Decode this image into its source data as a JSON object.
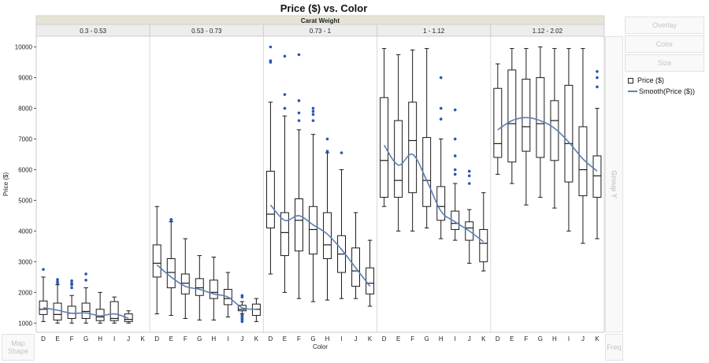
{
  "chart_data": {
    "type": "boxplot",
    "title": "Price ($) vs. Color",
    "group_header": "Carat Weight",
    "xlabel": "Color",
    "ylabel": "Price ($)",
    "ylim": [
      700,
      10350
    ],
    "yticks": [
      1000,
      2000,
      3000,
      4000,
      5000,
      6000,
      7000,
      8000,
      9000,
      10000
    ],
    "categories": [
      "D",
      "E",
      "F",
      "G",
      "H",
      "I",
      "J",
      "K"
    ],
    "legend": {
      "box_label": "Price ($)",
      "smooth_label": "Smooth(Price ($))"
    },
    "colors": {
      "smooth": "#5b7fb8",
      "outlier": "#2a56b8",
      "box": "#1a1a1a",
      "header_bg": "#e6e4d6"
    },
    "panels": [
      {
        "label": "0.3 - 0.53",
        "boxes": [
          {
            "cat": "D",
            "min": 1050,
            "q1": 1280,
            "median": 1450,
            "q3": 1720,
            "max": 2500,
            "outliers": [
              2750
            ]
          },
          {
            "cat": "E",
            "min": 1000,
            "q1": 1100,
            "median": 1280,
            "q3": 1650,
            "max": 2250,
            "outliers": [
              2300,
              2350,
              2420
            ]
          },
          {
            "cat": "F",
            "min": 1000,
            "q1": 1150,
            "median": 1320,
            "q3": 1550,
            "max": 1900,
            "outliers": [
              2150,
              2250,
              2300,
              2380
            ]
          },
          {
            "cat": "G",
            "min": 1000,
            "q1": 1150,
            "median": 1380,
            "q3": 1650,
            "max": 2150,
            "outliers": [
              2400,
              2600
            ]
          },
          {
            "cat": "H",
            "min": 1000,
            "q1": 1080,
            "median": 1200,
            "q3": 1450,
            "max": 2000,
            "outliers": []
          },
          {
            "cat": "I",
            "min": 1000,
            "q1": 1080,
            "median": 1150,
            "q3": 1700,
            "max": 1850,
            "outliers": []
          },
          {
            "cat": "J",
            "min": 1000,
            "q1": 1050,
            "median": 1120,
            "q3": 1300,
            "max": 1400,
            "outliers": []
          }
        ],
        "smooth": [
          1500,
          1420,
          1320,
          1330,
          1240,
          1300,
          1160
        ]
      },
      {
        "label": "0.53 - 0.73",
        "boxes": [
          {
            "cat": "D",
            "min": 1300,
            "q1": 2500,
            "median": 2950,
            "q3": 3550,
            "max": 4800,
            "outliers": []
          },
          {
            "cat": "E",
            "min": 1250,
            "q1": 2150,
            "median": 2650,
            "q3": 3100,
            "max": 4300,
            "outliers": [
              4350,
              4380
            ]
          },
          {
            "cat": "F",
            "min": 1150,
            "q1": 1950,
            "median": 2300,
            "q3": 2600,
            "max": 3750,
            "outliers": []
          },
          {
            "cat": "G",
            "min": 1100,
            "q1": 1900,
            "median": 2150,
            "q3": 2450,
            "max": 3200,
            "outliers": []
          },
          {
            "cat": "H",
            "min": 1100,
            "q1": 1800,
            "median": 2000,
            "q3": 2400,
            "max": 3150,
            "outliers": []
          },
          {
            "cat": "I",
            "min": 1200,
            "q1": 1600,
            "median": 1800,
            "q3": 2100,
            "max": 2650,
            "outliers": []
          },
          {
            "cat": "J",
            "min": 1300,
            "q1": 1400,
            "median": 1450,
            "q3": 1580,
            "max": 1700,
            "outliers": [
              1050,
              1100,
              1150,
              1200,
              1250,
              1850,
              1900
            ]
          },
          {
            "cat": "K",
            "min": 1050,
            "q1": 1250,
            "median": 1450,
            "q3": 1620,
            "max": 1800,
            "outliers": []
          }
        ],
        "smooth": [
          2900,
          2500,
          2200,
          2100,
          1950,
          1850,
          1500,
          1450
        ]
      },
      {
        "label": "0.73 - 1",
        "boxes": [
          {
            "cat": "D",
            "min": 2600,
            "q1": 4100,
            "median": 4550,
            "q3": 5950,
            "max": 8200,
            "outliers": [
              9500,
              9550,
              10000
            ]
          },
          {
            "cat": "E",
            "min": 2000,
            "q1": 3200,
            "median": 3950,
            "q3": 4600,
            "max": 7750,
            "outliers": [
              8000,
              8450,
              9700
            ]
          },
          {
            "cat": "F",
            "min": 1800,
            "q1": 3350,
            "median": 4350,
            "q3": 5050,
            "max": 7300,
            "outliers": [
              7600,
              7850,
              8250,
              9750
            ]
          },
          {
            "cat": "G",
            "min": 1700,
            "q1": 3250,
            "median": 4050,
            "q3": 4800,
            "max": 7150,
            "outliers": [
              7600,
              7800,
              7900,
              8000
            ]
          },
          {
            "cat": "H",
            "min": 1750,
            "q1": 3100,
            "median": 3550,
            "q3": 4600,
            "max": 6550,
            "outliers": [
              6600,
              7000
            ]
          },
          {
            "cat": "I",
            "min": 1800,
            "q1": 2650,
            "median": 3250,
            "q3": 3850,
            "max": 6000,
            "outliers": [
              6550
            ]
          },
          {
            "cat": "J",
            "min": 1800,
            "q1": 2200,
            "median": 2700,
            "q3": 3450,
            "max": 4600,
            "outliers": []
          },
          {
            "cat": "K",
            "min": 1550,
            "q1": 1950,
            "median": 2300,
            "q3": 2800,
            "max": 3700,
            "outliers": []
          }
        ],
        "smooth": [
          4850,
          4350,
          4500,
          4200,
          3900,
          3400,
          2800,
          2200
        ]
      },
      {
        "label": "1 - 1.12",
        "boxes": [
          {
            "cat": "D",
            "min": 4800,
            "q1": 5100,
            "median": 6300,
            "q3": 8350,
            "max": 9950,
            "outliers": []
          },
          {
            "cat": "E",
            "min": 4000,
            "q1": 5100,
            "median": 5650,
            "q3": 7600,
            "max": 9750,
            "outliers": []
          },
          {
            "cat": "F",
            "min": 4000,
            "q1": 5250,
            "median": 6950,
            "q3": 8200,
            "max": 9900,
            "outliers": []
          },
          {
            "cat": "G",
            "min": 4100,
            "q1": 4800,
            "median": 5650,
            "q3": 7050,
            "max": 9950,
            "outliers": []
          },
          {
            "cat": "H",
            "min": 3750,
            "q1": 4350,
            "median": 4800,
            "q3": 5450,
            "max": 7000,
            "outliers": [
              7650,
              8000,
              9000
            ]
          },
          {
            "cat": "I",
            "min": 3700,
            "q1": 4050,
            "median": 4250,
            "q3": 4650,
            "max": 5550,
            "outliers": [
              5850,
              6000,
              6450,
              7000,
              7950
            ]
          },
          {
            "cat": "J",
            "min": 2950,
            "q1": 3700,
            "median": 4100,
            "q3": 4300,
            "max": 4700,
            "outliers": [
              5550,
              5800,
              5950
            ]
          },
          {
            "cat": "K",
            "min": 2700,
            "q1": 3000,
            "median": 3600,
            "q3": 4050,
            "max": 5250,
            "outliers": []
          }
        ],
        "smooth": [
          6800,
          6150,
          6500,
          5650,
          4650,
          4300,
          4000,
          3650
        ]
      },
      {
        "label": "1.12 - 2.02",
        "boxes": [
          {
            "cat": "D",
            "min": 5850,
            "q1": 6400,
            "median": 6850,
            "q3": 8650,
            "max": 9450,
            "outliers": []
          },
          {
            "cat": "E",
            "min": 5550,
            "q1": 6250,
            "median": 7500,
            "q3": 9250,
            "max": 9950,
            "outliers": []
          },
          {
            "cat": "F",
            "min": 4850,
            "q1": 6600,
            "median": 7400,
            "q3": 8950,
            "max": 9950,
            "outliers": []
          },
          {
            "cat": "G",
            "min": 5100,
            "q1": 6400,
            "median": 7500,
            "q3": 9000,
            "max": 10000,
            "outliers": []
          },
          {
            "cat": "H",
            "min": 4750,
            "q1": 6300,
            "median": 7600,
            "q3": 8250,
            "max": 9950,
            "outliers": []
          },
          {
            "cat": "I",
            "min": 4000,
            "q1": 5600,
            "median": 6850,
            "q3": 8750,
            "max": 9950,
            "outliers": []
          },
          {
            "cat": "J",
            "min": 3600,
            "q1": 5150,
            "median": 6000,
            "q3": 7400,
            "max": 9950,
            "outliers": []
          },
          {
            "cat": "K",
            "min": 3750,
            "q1": 5100,
            "median": 5800,
            "q3": 6450,
            "max": 8000,
            "outliers": [
              8700,
              9000,
              9200
            ]
          }
        ],
        "smooth": [
          7300,
          7600,
          7700,
          7600,
          7350,
          6900,
          6350,
          5950
        ]
      }
    ]
  },
  "controls": {
    "overlay": "Overlay",
    "color": "Color",
    "size": "Size",
    "group_y": "Group Y",
    "freq": "Freq",
    "map_shape_1": "Map",
    "map_shape_2": "Shape"
  }
}
